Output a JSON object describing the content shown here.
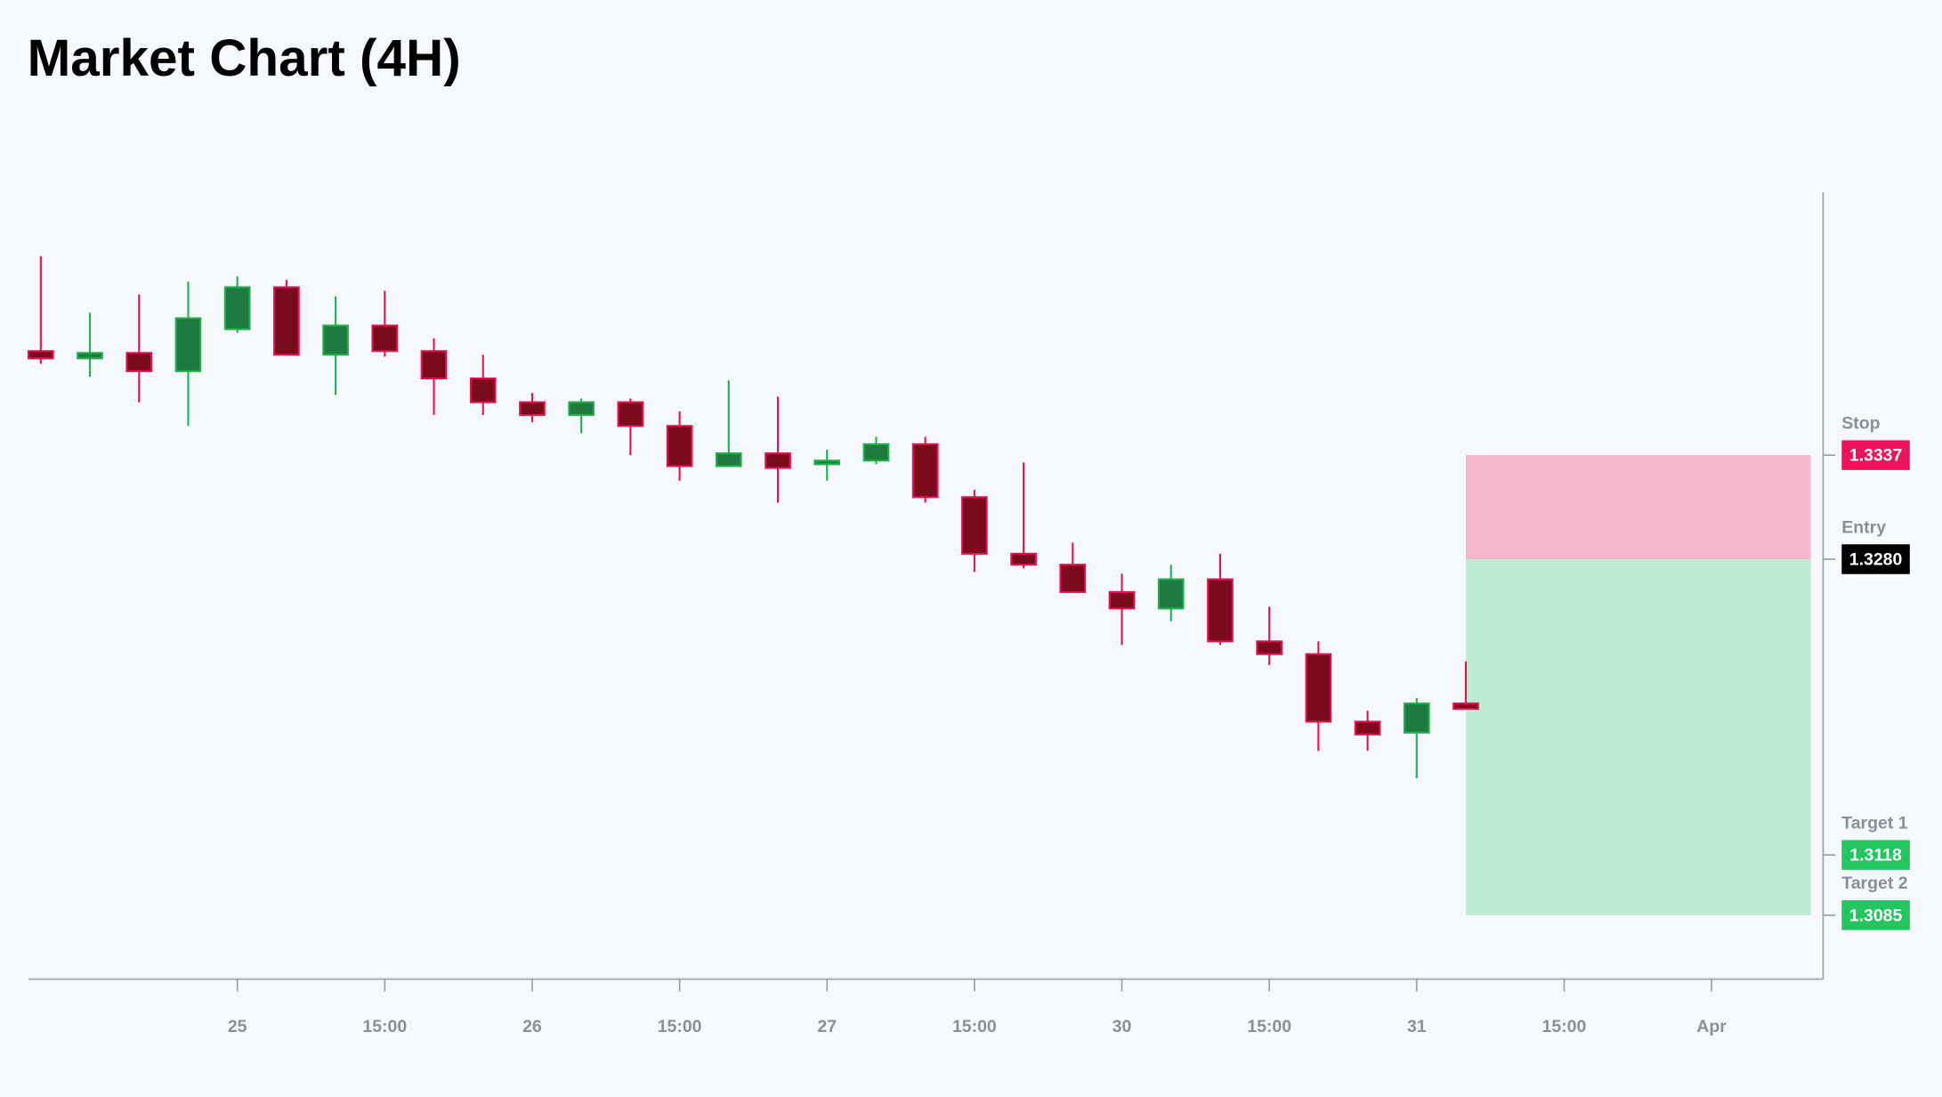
{
  "chart_data": {
    "type": "candlestick",
    "title": "Market Chart (4H)",
    "open": [
      1.3394,
      1.339,
      1.3393,
      1.3383,
      1.3406,
      1.3429,
      1.3392,
      1.3408,
      1.3394,
      1.3379,
      1.3366,
      1.3359,
      1.3366,
      1.3353,
      1.3331,
      1.3338,
      1.3332,
      1.3334,
      1.3343,
      1.3314,
      1.3283,
      1.3277,
      1.3262,
      1.3253,
      1.3269,
      1.3235,
      1.3228,
      1.3191,
      1.3185,
      1.3201
    ],
    "high": [
      1.3446,
      1.3415,
      1.3425,
      1.3432,
      1.3435,
      1.3433,
      1.3424,
      1.3427,
      1.3401,
      1.3392,
      1.3371,
      1.3368,
      1.3368,
      1.3361,
      1.3378,
      1.3369,
      1.334,
      1.3347,
      1.3347,
      1.3318,
      1.3333,
      1.3289,
      1.3272,
      1.3277,
      1.3283,
      1.3254,
      1.3235,
      1.3197,
      1.3204,
      1.3224
    ],
    "low": [
      1.3387,
      1.338,
      1.3366,
      1.3353,
      1.3404,
      1.3392,
      1.337,
      1.3391,
      1.3359,
      1.3359,
      1.3355,
      1.3349,
      1.3337,
      1.3323,
      1.3331,
      1.3311,
      1.3323,
      1.3332,
      1.3311,
      1.3273,
      1.3275,
      1.3262,
      1.3233,
      1.3246,
      1.3233,
      1.3222,
      1.3175,
      1.3175,
      1.316,
      1.3198
    ],
    "close": [
      1.339,
      1.3393,
      1.3383,
      1.3412,
      1.3429,
      1.3392,
      1.3408,
      1.3394,
      1.3379,
      1.3366,
      1.3359,
      1.3366,
      1.3353,
      1.3331,
      1.3338,
      1.333,
      1.3334,
      1.3343,
      1.3314,
      1.3283,
      1.3277,
      1.3262,
      1.3253,
      1.3269,
      1.3235,
      1.3228,
      1.3191,
      1.3184,
      1.3201,
      1.3198
    ],
    "up_color": "#1f7a3f",
    "up_border": "#22b04b",
    "down_color": "#7a0b1c",
    "down_border": "#e5114f",
    "levels": [
      {
        "name": "Stop",
        "value": 1.3337,
        "label": "1.3337",
        "color": "#f0125a"
      },
      {
        "name": "Entry",
        "value": 1.328,
        "label": "1.3280",
        "color": "#000000"
      },
      {
        "name": "Target 1",
        "value": 1.3118,
        "label": "1.3118",
        "color": "#22c55e"
      },
      {
        "name": "Target 2",
        "value": 1.3085,
        "label": "1.3085",
        "color": "#22c55e"
      }
    ],
    "risk_color": "#f5b5cb",
    "reward_color": "#bdecd3",
    "xlim": [
      -0.25,
      36.27
    ],
    "xticks": [
      {
        "value": 4,
        "label": "25"
      },
      {
        "value": 7,
        "label": "15:00"
      },
      {
        "value": 10,
        "label": "26"
      },
      {
        "value": 13,
        "label": "15:00"
      },
      {
        "value": 16,
        "label": "27"
      },
      {
        "value": 19,
        "label": "15:00"
      },
      {
        "value": 22,
        "label": "30"
      },
      {
        "value": 25,
        "label": "15:00"
      },
      {
        "value": 28,
        "label": "31"
      },
      {
        "value": 31,
        "label": "15:00"
      },
      {
        "value": 34,
        "label": "Apr"
      }
    ],
    "ylim": [
      1.305,
      1.3481
    ]
  }
}
